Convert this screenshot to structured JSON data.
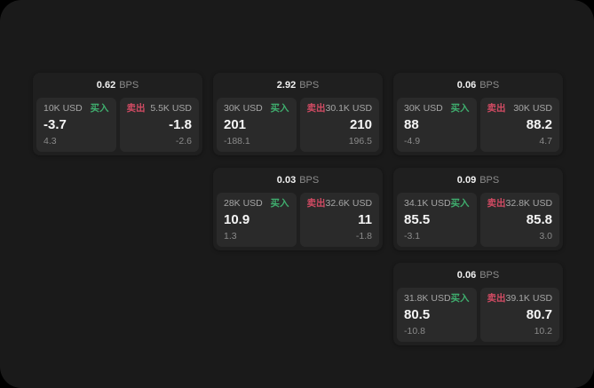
{
  "labels": {
    "buy": "买入",
    "sell": "卖出",
    "bps_unit": "BPS"
  },
  "colors": {
    "page_background": "#1a1a1a",
    "card_background": "#1f1f1f",
    "cell_background": "#2a2a2a",
    "buy": "#3fae6e",
    "sell": "#d14b63"
  },
  "cards": [
    {
      "row": 0,
      "col": 0,
      "bps": "0.62",
      "buy": {
        "amount": "10K USD",
        "value": "-3.7",
        "sub": "4.3"
      },
      "sell": {
        "amount": "5.5K USD",
        "value": "-1.8",
        "sub": "-2.6"
      }
    },
    {
      "row": 0,
      "col": 1,
      "bps": "2.92",
      "buy": {
        "amount": "30K USD",
        "value": "201",
        "sub": "-188.1"
      },
      "sell": {
        "amount": "30.1K USD",
        "value": "210",
        "sub": "196.5"
      }
    },
    {
      "row": 0,
      "col": 2,
      "bps": "0.06",
      "buy": {
        "amount": "30K USD",
        "value": "88",
        "sub": "-4.9"
      },
      "sell": {
        "amount": "30K USD",
        "value": "88.2",
        "sub": "4.7"
      }
    },
    {
      "row": 1,
      "col": 1,
      "bps": "0.03",
      "buy": {
        "amount": "28K USD",
        "value": "10.9",
        "sub": "1.3"
      },
      "sell": {
        "amount": "32.6K USD",
        "value": "11",
        "sub": "-1.8"
      }
    },
    {
      "row": 1,
      "col": 2,
      "bps": "0.09",
      "buy": {
        "amount": "34.1K USD",
        "value": "85.5",
        "sub": "-3.1"
      },
      "sell": {
        "amount": "32.8K USD",
        "value": "85.8",
        "sub": "3.0"
      }
    },
    {
      "row": 2,
      "col": 2,
      "bps": "0.06",
      "buy": {
        "amount": "31.8K USD",
        "value": "80.5",
        "sub": "-10.8"
      },
      "sell": {
        "amount": "39.1K USD",
        "value": "80.7",
        "sub": "10.2"
      }
    }
  ]
}
